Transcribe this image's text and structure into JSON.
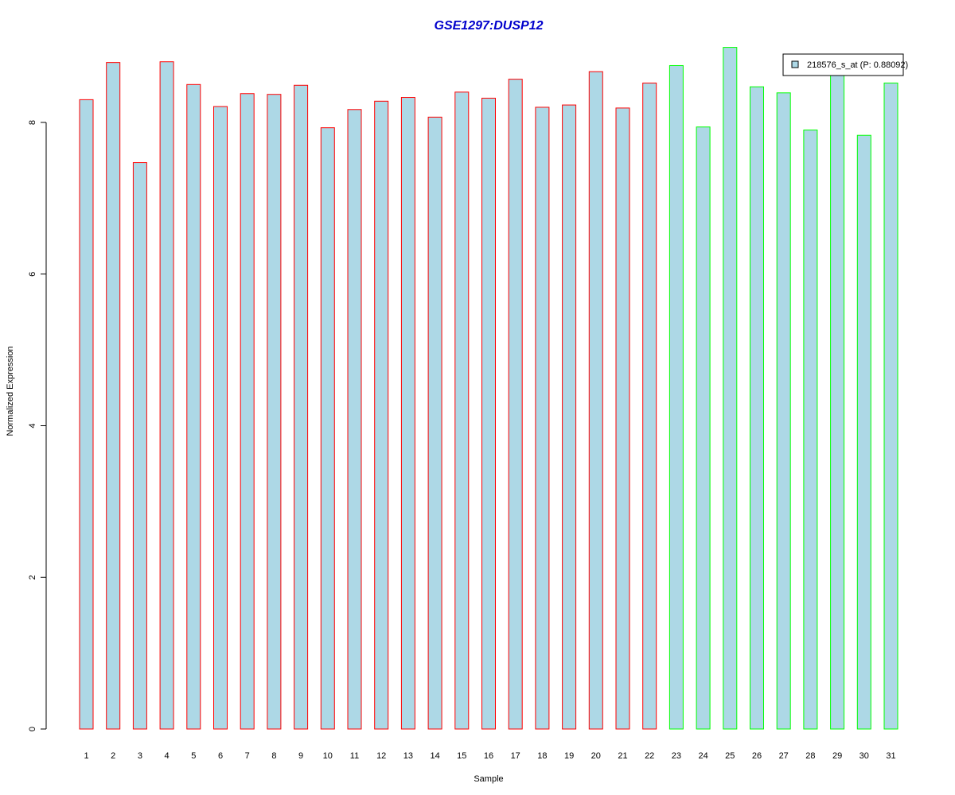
{
  "chart_data": {
    "type": "bar",
    "title": "GSE1297:DUSP12",
    "title_color": "#0000CC",
    "xlabel": "Sample",
    "ylabel": "Normalized Expression",
    "categories": [
      "1",
      "2",
      "3",
      "4",
      "5",
      "6",
      "7",
      "8",
      "9",
      "10",
      "11",
      "12",
      "13",
      "14",
      "15",
      "16",
      "17",
      "18",
      "19",
      "20",
      "21",
      "22",
      "23",
      "24",
      "25",
      "26",
      "27",
      "28",
      "29",
      "30",
      "31"
    ],
    "values": [
      8.3,
      8.79,
      7.47,
      8.8,
      8.5,
      8.21,
      8.38,
      8.37,
      8.49,
      7.93,
      8.17,
      8.28,
      8.33,
      8.07,
      8.4,
      8.32,
      8.57,
      8.2,
      8.23,
      8.67,
      8.19,
      8.52,
      8.75,
      7.94,
      8.99,
      8.47,
      8.39,
      7.9,
      8.63,
      7.83,
      8.52
    ],
    "groups": [
      1,
      1,
      1,
      1,
      1,
      1,
      1,
      1,
      1,
      1,
      1,
      1,
      1,
      1,
      1,
      1,
      1,
      1,
      1,
      1,
      1,
      1,
      2,
      2,
      2,
      2,
      2,
      2,
      2,
      2,
      2
    ],
    "group_border_colors": {
      "1": "#FF0000",
      "2": "#00FF00"
    },
    "bar_fill": "#ADD8E6",
    "ylim": [
      0,
      9
    ],
    "yticks": [
      0,
      2,
      4,
      6,
      8
    ],
    "grid": false,
    "legend": {
      "placement": "top-right",
      "entries": [
        {
          "label": "218576_s_at (P: 0.88092)",
          "color": "#ADD8E6"
        }
      ]
    }
  }
}
